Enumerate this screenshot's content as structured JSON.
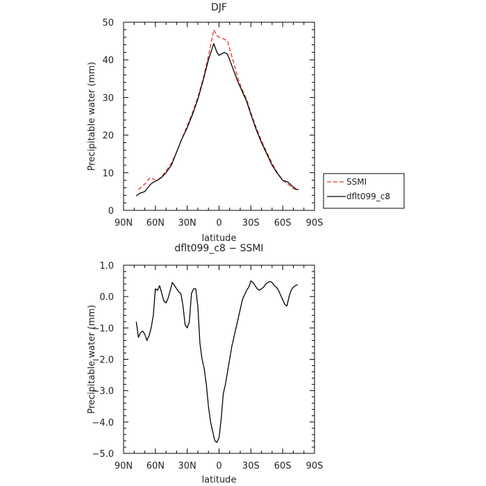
{
  "chart_data": [
    {
      "type": "line",
      "title": "DJF",
      "xlabel": "latitude",
      "ylabel": "Precipitable water  (mm)",
      "xlim": [
        90,
        -90
      ],
      "ylim": [
        0,
        50
      ],
      "x_ticks": [
        90,
        60,
        30,
        0,
        -30,
        -60,
        -90
      ],
      "x_tick_labels": [
        "90N",
        "60N",
        "30N",
        "0",
        "30S",
        "60S",
        "90S"
      ],
      "y_ticks": [
        0,
        10,
        20,
        30,
        40,
        50
      ],
      "y_tick_labels": [
        "0",
        "10",
        "20",
        "30",
        "40",
        "50"
      ],
      "grid": false,
      "legend_position": "right",
      "series": [
        {
          "name": "SSMI",
          "color": "#e8302a",
          "dash": "dashed",
          "x": [
            76,
            70,
            65,
            62,
            58,
            54,
            50,
            45,
            40,
            35,
            30,
            25,
            20,
            15,
            10,
            5,
            2,
            0,
            -2,
            -5,
            -8,
            -10,
            -14,
            -18,
            -22,
            -26,
            -30,
            -35,
            -40,
            -45,
            -50,
            -55,
            -60,
            -65,
            -70,
            -73,
            -75
          ],
          "y": [
            5.5,
            7.0,
            8.7,
            8.3,
            8.0,
            9.0,
            10.5,
            12.5,
            15.5,
            19.0,
            22.5,
            26.0,
            30.0,
            35.0,
            41.0,
            48.0,
            46.5,
            46.0,
            45.8,
            45.5,
            45.0,
            43.0,
            39.0,
            35.0,
            32.0,
            29.5,
            26.0,
            22.0,
            18.5,
            15.5,
            12.5,
            10.0,
            8.0,
            7.0,
            5.8,
            5.5,
            5.5
          ]
        },
        {
          "name": "dflt099_c8",
          "color": "#000000",
          "dash": "solid",
          "x": [
            78,
            75,
            70,
            65,
            62,
            58,
            54,
            50,
            45,
            40,
            35,
            30,
            25,
            20,
            15,
            10,
            5,
            2,
            0,
            -2,
            -5,
            -8,
            -10,
            -14,
            -18,
            -22,
            -26,
            -30,
            -35,
            -40,
            -45,
            -50,
            -55,
            -60,
            -65,
            -70,
            -73,
            -75
          ],
          "y": [
            3.8,
            4.5,
            5.0,
            6.8,
            7.5,
            8.0,
            8.8,
            10.0,
            12.0,
            15.5,
            19.0,
            22.0,
            25.5,
            29.5,
            34.5,
            40.0,
            44.3,
            42.0,
            41.2,
            41.5,
            42.0,
            41.5,
            40.0,
            37.0,
            34.0,
            31.5,
            29.0,
            25.5,
            21.5,
            18.0,
            15.0,
            12.0,
            9.8,
            8.0,
            7.5,
            6.2,
            5.6,
            5.5
          ]
        }
      ]
    },
    {
      "type": "line",
      "title": "dflt099_c8 − SSMI",
      "xlabel": "latitude",
      "ylabel": "Precipitable water  (mm)",
      "xlim": [
        90,
        -90
      ],
      "ylim": [
        -5,
        1
      ],
      "x_ticks": [
        90,
        60,
        30,
        0,
        -30,
        -60,
        -90
      ],
      "x_tick_labels": [
        "90N",
        "60N",
        "30N",
        "0",
        "30S",
        "60S",
        "90S"
      ],
      "y_ticks": [
        -5,
        -4,
        -3,
        -2,
        -1,
        0,
        1
      ],
      "y_tick_labels": [
        "−5.0",
        "−4.0",
        "−3.0",
        "−2.0",
        "−1.0",
        "0.0",
        "1.0"
      ],
      "grid": false,
      "series": [
        {
          "color": "#000000",
          "dash": "solid",
          "x": [
            78,
            76,
            74,
            72,
            70,
            68,
            66,
            64,
            62,
            60,
            58,
            56,
            54,
            52,
            50,
            48,
            46,
            44,
            42,
            40,
            38,
            36,
            34,
            32,
            30,
            28,
            26,
            24,
            22,
            20,
            18,
            16,
            14,
            12,
            10,
            8,
            6,
            4,
            2,
            0,
            -2,
            -4,
            -6,
            -8,
            -10,
            -12,
            -14,
            -16,
            -18,
            -20,
            -22,
            -24,
            -26,
            -28,
            -30,
            -32,
            -34,
            -36,
            -38,
            -40,
            -42,
            -44,
            -46,
            -48,
            -50,
            -52,
            -54,
            -56,
            -58,
            -60,
            -62,
            -64,
            -66,
            -68,
            -70,
            -72,
            -74
          ],
          "y": [
            -0.8,
            -1.3,
            -1.15,
            -1.1,
            -1.2,
            -1.4,
            -1.25,
            -1.0,
            -0.6,
            0.25,
            0.2,
            0.35,
            0.1,
            -0.15,
            -0.2,
            -0.05,
            0.2,
            0.45,
            0.35,
            0.25,
            0.15,
            0.1,
            -0.3,
            -0.9,
            -1.0,
            -0.8,
            0.1,
            0.25,
            0.25,
            -0.3,
            -1.5,
            -2.0,
            -2.3,
            -2.8,
            -3.5,
            -4.0,
            -4.3,
            -4.6,
            -4.65,
            -4.5,
            -3.9,
            -3.1,
            -2.8,
            -2.4,
            -2.0,
            -1.6,
            -1.3,
            -1.0,
            -0.7,
            -0.4,
            -0.1,
            0.05,
            0.2,
            0.3,
            0.5,
            0.45,
            0.35,
            0.25,
            0.2,
            0.25,
            0.3,
            0.4,
            0.45,
            0.48,
            0.45,
            0.35,
            0.3,
            0.2,
            0.05,
            -0.1,
            -0.25,
            -0.3,
            0.0,
            0.2,
            0.3,
            0.35,
            0.38
          ]
        }
      ]
    }
  ]
}
